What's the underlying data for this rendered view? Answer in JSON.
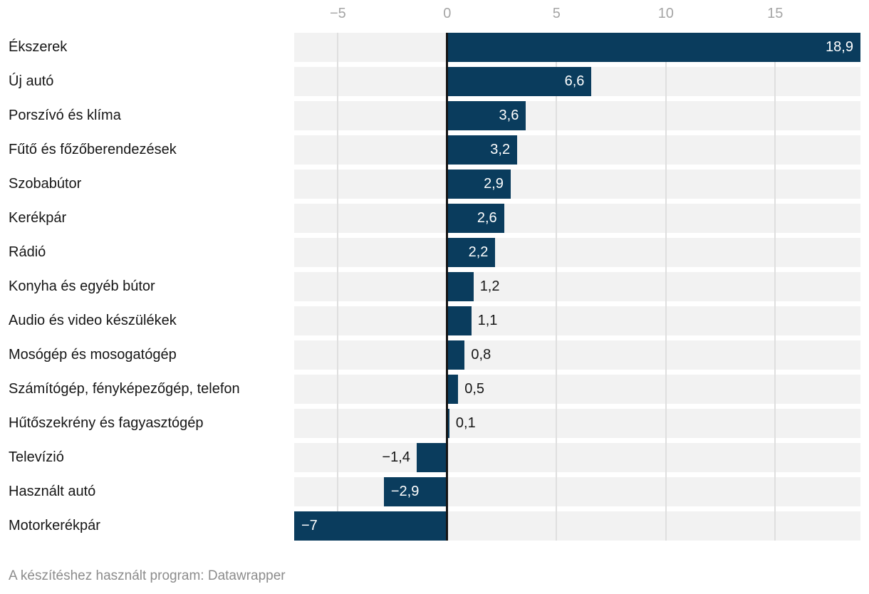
{
  "chart_data": {
    "type": "bar",
    "orientation": "horizontal",
    "title": "",
    "xlabel": "",
    "ylabel": "",
    "xlim": [
      -7,
      18.9
    ],
    "grid": true,
    "axis_position": "top",
    "axis_ticks": [
      -5,
      0,
      5,
      10,
      15
    ],
    "axis_tick_labels": [
      "−5",
      "0",
      "5",
      "10",
      "15"
    ],
    "categories": [
      "Ékszerek",
      "Új autó",
      "Porszívó és klíma",
      "Fűtő és főzőberendezések",
      "Szobabútor",
      "Kerékpár",
      "Rádió",
      "Konyha és egyéb bútor",
      "Audio és video készülékek",
      "Mosógép és mosogatógép",
      "Számítógép, fényképezőgép, telefon",
      "Hűtőszekrény és fagyasztógép",
      "Televízió",
      "Használt autó",
      "Motorkerékpár"
    ],
    "values": [
      18.9,
      6.6,
      3.6,
      3.2,
      2.9,
      2.6,
      2.2,
      1.2,
      1.1,
      0.8,
      0.5,
      0.1,
      -1.4,
      -2.9,
      -7
    ],
    "value_labels": [
      "18,9",
      "6,6",
      "3,6",
      "3,2",
      "2,9",
      "2,6",
      "2,2",
      "1,2",
      "1,1",
      "0,8",
      "0,5",
      "0,1",
      "−1,4",
      "−2,9",
      "−7"
    ]
  },
  "colors": {
    "bar": "#0a3c5d",
    "row_bg": "#f2f2f2",
    "grid": "#dfdfdf",
    "zero_line": "#151515",
    "axis_text": "#a5a5a5",
    "category_text": "#161616",
    "value_inside": "#ffffff",
    "value_outside": "#161616",
    "footer_text": "#8c8c8c"
  },
  "footer": {
    "text": "A készítéshez használt program: Datawrapper"
  }
}
